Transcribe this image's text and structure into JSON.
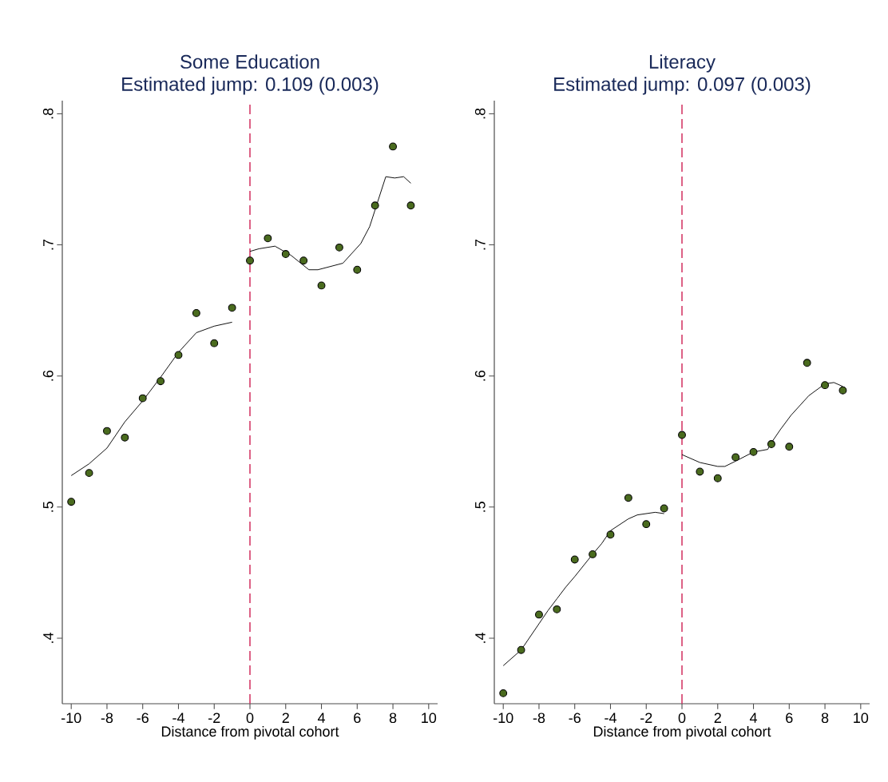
{
  "chart_data": [
    {
      "type": "scatter",
      "title": "Some Education",
      "subtitle": "Estimated jump: 0.109 (0.003)",
      "xlabel": "Distance from pivotal cohort",
      "xlim": [
        -10.5,
        10.5
      ],
      "xticks": [
        -10,
        -8,
        -6,
        -4,
        -2,
        0,
        2,
        4,
        6,
        8,
        10
      ],
      "ylim": [
        0.35,
        0.81
      ],
      "yticks": [
        {
          "value": 0.4,
          "label": ".4"
        },
        {
          "value": 0.5,
          "label": ".5"
        },
        {
          "value": 0.6,
          "label": ".6"
        },
        {
          "value": 0.7,
          "label": ".7"
        },
        {
          "value": 0.8,
          "label": ".8"
        }
      ],
      "grid": false,
      "marker": "circle",
      "ref_lines": [
        {
          "axis": "x",
          "value": 0,
          "color": "#d0285a",
          "line_style": "dashed"
        }
      ],
      "series": [
        {
          "color": "#4a6b1e",
          "x": [
            -10,
            -9,
            -8,
            -7,
            -6,
            -5,
            -4,
            -3,
            -2,
            -1,
            0,
            1,
            2,
            3,
            4,
            5,
            6,
            7,
            8,
            9
          ],
          "values": [
            0.504,
            0.526,
            0.558,
            0.553,
            0.583,
            0.596,
            0.616,
            0.648,
            0.625,
            0.652,
            0.688,
            0.705,
            0.693,
            0.688,
            0.669,
            0.698,
            0.681,
            0.73,
            0.775,
            0.73
          ]
        },
        {
          "type": "line",
          "marker": "none",
          "color": "#000000",
          "x": [
            -10,
            -9,
            -8,
            -7,
            -6,
            -5,
            -4,
            -3,
            -2,
            -1
          ],
          "values": [
            0.524,
            0.533,
            0.545,
            0.565,
            0.581,
            0.599,
            0.618,
            0.633,
            0.638,
            0.641
          ]
        },
        {
          "type": "line",
          "marker": "none",
          "color": "#000000",
          "x": [
            0,
            0.5,
            1.4,
            2.3,
            3.3,
            3.8,
            5.2,
            6.2,
            6.7,
            7.6,
            8.1,
            8.6,
            9
          ],
          "values": [
            0.695,
            0.697,
            0.699,
            0.692,
            0.681,
            0.681,
            0.686,
            0.701,
            0.714,
            0.752,
            0.751,
            0.752,
            0.747
          ]
        }
      ]
    },
    {
      "type": "scatter",
      "title": "Literacy",
      "subtitle": "Estimated jump: 0.097 (0.003)",
      "xlabel": "Distance from pivotal cohort",
      "xlim": [
        -10.5,
        10.5
      ],
      "xticks": [
        -10,
        -8,
        -6,
        -4,
        -2,
        0,
        2,
        4,
        6,
        8,
        10
      ],
      "ylim": [
        0.35,
        0.81
      ],
      "yticks": [
        {
          "value": 0.4,
          "label": ".4"
        },
        {
          "value": 0.5,
          "label": ".5"
        },
        {
          "value": 0.6,
          "label": ".6"
        },
        {
          "value": 0.7,
          "label": ".7"
        },
        {
          "value": 0.8,
          "label": ".8"
        }
      ],
      "grid": false,
      "marker": "circle",
      "ref_lines": [
        {
          "axis": "x",
          "value": 0,
          "color": "#d0285a",
          "line_style": "dashed"
        }
      ],
      "series": [
        {
          "color": "#4a6b1e",
          "x": [
            -10,
            -9,
            -8,
            -7,
            -6,
            -5,
            -4,
            -3,
            -2,
            -1,
            0,
            1,
            2,
            3,
            4,
            5,
            6,
            7,
            8,
            9
          ],
          "values": [
            0.358,
            0.391,
            0.418,
            0.422,
            0.46,
            0.464,
            0.479,
            0.507,
            0.487,
            0.499,
            0.555,
            0.527,
            0.522,
            0.538,
            0.542,
            0.548,
            0.546,
            0.61,
            0.593,
            0.589
          ]
        },
        {
          "type": "line",
          "marker": "none",
          "color": "#000000",
          "x": [
            -10,
            -9,
            -8,
            -7.5,
            -7,
            -6.5,
            -6,
            -5,
            -4.5,
            -4,
            -3,
            -2.5,
            -1.5,
            -1
          ],
          "values": [
            0.379,
            0.391,
            0.411,
            0.421,
            0.43,
            0.439,
            0.447,
            0.464,
            0.472,
            0.482,
            0.491,
            0.494,
            0.496,
            0.495
          ]
        },
        {
          "type": "line",
          "marker": "none",
          "color": "#000000",
          "x": [
            0,
            1,
            2,
            2.4,
            3,
            4,
            4.8,
            5,
            5.5,
            6.1,
            7.1,
            8,
            8.5,
            9
          ],
          "values": [
            0.54,
            0.534,
            0.531,
            0.531,
            0.535,
            0.542,
            0.544,
            0.549,
            0.559,
            0.57,
            0.585,
            0.594,
            0.595,
            0.592
          ]
        }
      ]
    }
  ]
}
